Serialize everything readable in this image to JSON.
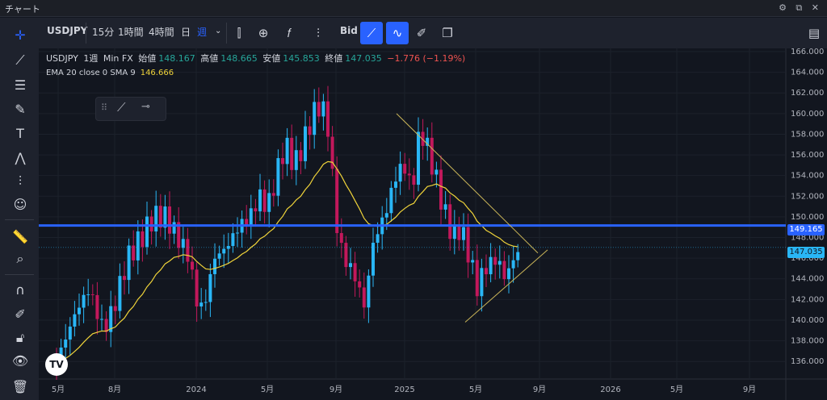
{
  "window": {
    "title": "チャート"
  },
  "toolbar": {
    "symbol": "USDJPY",
    "intervals": [
      "15分",
      "1時間",
      "4時間",
      "日",
      "週"
    ],
    "selected_interval": "週",
    "price_source": "Bid"
  },
  "legend": {
    "symbol": "USDJPY",
    "interval": "1週",
    "exchange": "Min FX",
    "open_label": "始値",
    "open": "148.167",
    "high_label": "高値",
    "high": "148.665",
    "low_label": "安値",
    "low": "145.853",
    "close_label": "終値",
    "close": "147.035",
    "change": "−1.776 (−1.19%)",
    "ema_label": "EMA 20 close 0 SMA 9",
    "ema_value": "146.666"
  },
  "price_axis": {
    "ticks": [
      "166.000",
      "164.000",
      "162.000",
      "160.000",
      "158.000",
      "156.000",
      "154.000",
      "152.000",
      "150.000",
      "148.000",
      "146.000",
      "144.000",
      "142.000",
      "140.000",
      "138.000",
      "136.000"
    ],
    "hline_tag": "149.165",
    "last_price_tag": "147.035"
  },
  "time_axis": {
    "ticks": [
      "5月",
      "8月",
      "2024",
      "5月",
      "9月",
      "2025",
      "5月",
      "9月",
      "2026",
      "5月",
      "9月"
    ]
  },
  "colors": {
    "up": "#26a69a",
    "down": "#ef5350",
    "hline": "#2962ff",
    "ema": "#f0d43a",
    "last": "#29b6f6"
  },
  "logo": {
    "text": "TV"
  }
}
